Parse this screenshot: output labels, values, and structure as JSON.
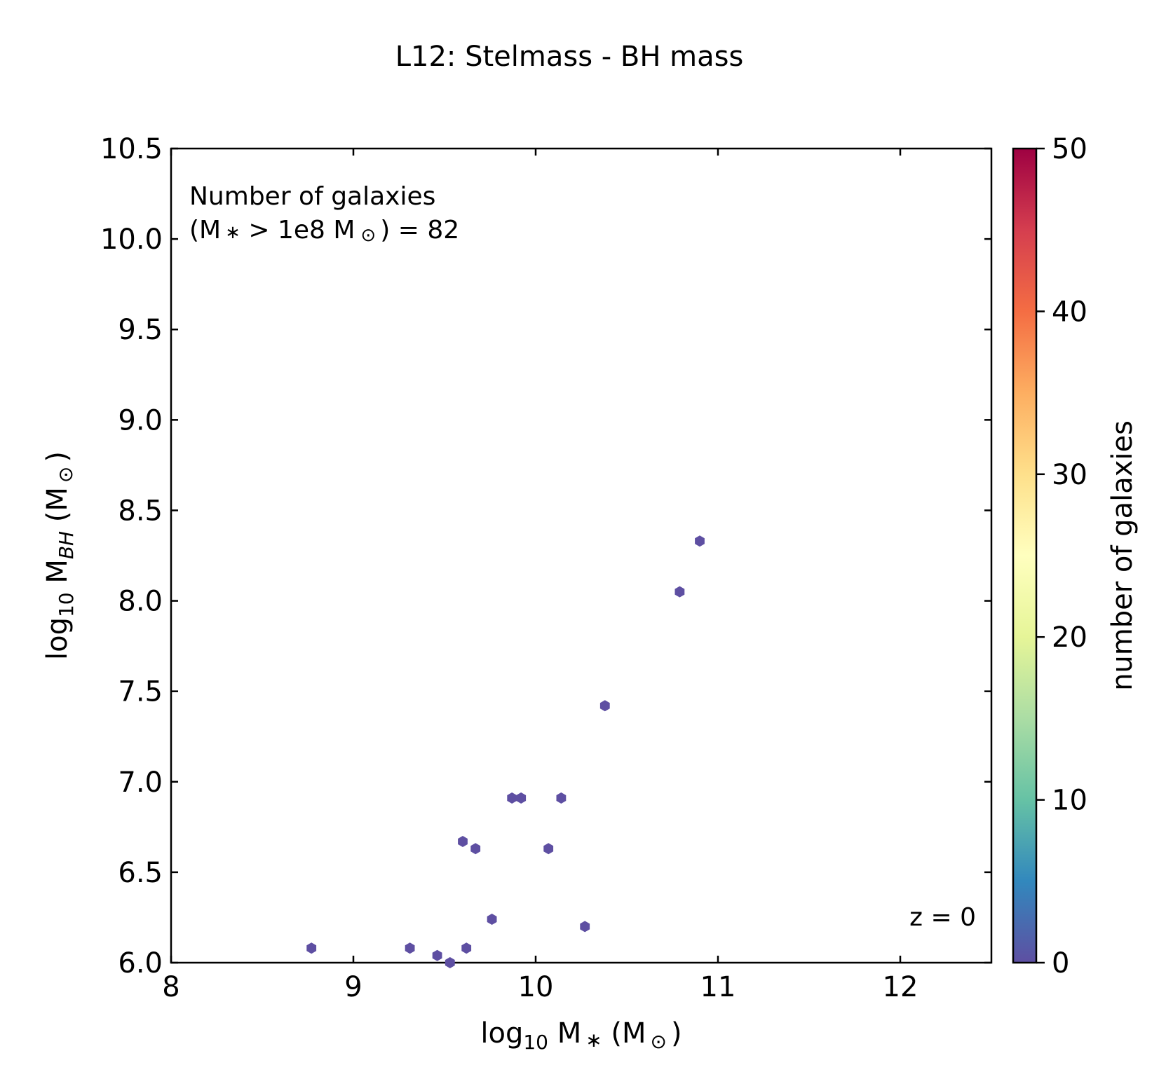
{
  "chart_data": {
    "type": "hexbin",
    "title": "L12: Stelmass - BH mass",
    "xlabel": {
      "main": "log",
      "sub": "10",
      "rest": " M",
      "subsym": "∗",
      "unit_open": " (M",
      "unit_sym": "⊙",
      "unit_close": ")"
    },
    "ylabel": {
      "main": "log",
      "sub": "10",
      "rest": " M",
      "subsym": "BH",
      "unit_open": " (M",
      "unit_sym": "⊙",
      "unit_close": ")"
    },
    "xlim": [
      8,
      12.5
    ],
    "ylim": [
      6.0,
      10.5
    ],
    "xticks": [
      8,
      9,
      10,
      11,
      12
    ],
    "yticks": [
      6.0,
      6.5,
      7.0,
      7.5,
      8.0,
      8.5,
      9.0,
      9.5,
      10.0,
      10.5
    ],
    "grid": false,
    "annotations": {
      "count_line1": "Number of galaxies",
      "count_line2_a": "(M",
      "count_line2_sym1": "∗",
      "count_line2_b": " > 1e8 M",
      "count_line2_sym2": "⊙",
      "count_line2_c": ") = 82",
      "redshift": "z = 0"
    },
    "colorbar": {
      "label": "number of galaxies",
      "range": [
        0,
        50
      ],
      "ticks": [
        0,
        10,
        20,
        30,
        40,
        50
      ],
      "colormap": "Spectral_r",
      "colors": [
        "#5e4fa2",
        "#3288bd",
        "#66c2a5",
        "#abdda4",
        "#e6f598",
        "#ffffbf",
        "#fee08b",
        "#fdae61",
        "#f46d43",
        "#d53e4f",
        "#9e0142"
      ]
    },
    "points": [
      {
        "x": 8.77,
        "y": 6.08
      },
      {
        "x": 9.31,
        "y": 6.08
      },
      {
        "x": 9.46,
        "y": 6.04
      },
      {
        "x": 9.53,
        "y": 6.0
      },
      {
        "x": 9.62,
        "y": 6.08
      },
      {
        "x": 9.76,
        "y": 6.24
      },
      {
        "x": 9.6,
        "y": 6.67
      },
      {
        "x": 9.67,
        "y": 6.63
      },
      {
        "x": 9.87,
        "y": 6.91
      },
      {
        "x": 9.92,
        "y": 6.91
      },
      {
        "x": 10.14,
        "y": 6.91
      },
      {
        "x": 10.07,
        "y": 6.63
      },
      {
        "x": 10.27,
        "y": 6.2
      },
      {
        "x": 10.38,
        "y": 7.42
      },
      {
        "x": 10.79,
        "y": 8.05
      },
      {
        "x": 10.9,
        "y": 8.33
      }
    ],
    "point_color": "#5e4fa2"
  }
}
